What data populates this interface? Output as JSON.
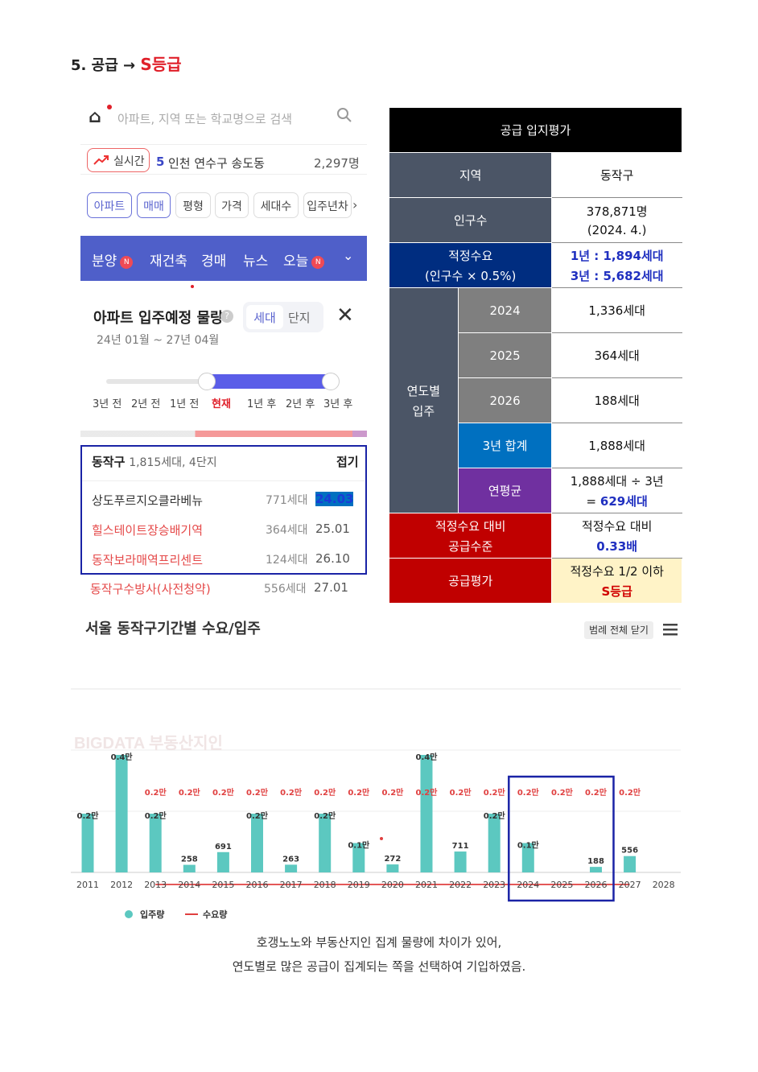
{
  "heading": {
    "prefix": "5. 공급 → ",
    "grade": "S등급"
  },
  "app": {
    "search_placeholder": "아파트, 지역 또는 학교명으로 검색",
    "realtime": {
      "label": "실시간",
      "rank": "5",
      "name": "인천 연수구 송도동",
      "count": "2,297명"
    },
    "filters": [
      "아파트",
      "매매",
      "평형",
      "가격",
      "세대수",
      "입주년차"
    ],
    "nav": [
      "분양",
      "재건축",
      "경매",
      "뉴스",
      "오늘"
    ],
    "nav_badge": "N",
    "supply_title": "아파트 입주예정 물량",
    "toggle": [
      "세대",
      "단지"
    ],
    "range": "24년 01월 ~ 27년 04월",
    "slider_labels": [
      "3년 전",
      "2년 전",
      "1년 전",
      "현재",
      "1년 후",
      "2년 후",
      "3년 후"
    ],
    "slider_selected": {
      "from": "현재",
      "to": "3년 후"
    },
    "list_head": {
      "district": "동작구",
      "summary": "1,815세대, 4단지",
      "fold": "접기"
    },
    "rows": [
      {
        "name": "상도푸르지오클라베뉴",
        "households": "771세대",
        "date": "24.03"
      },
      {
        "name": "힐스테이트장승배기역",
        "households": "364세대",
        "date": "25.01"
      },
      {
        "name": "동작보라매역프리센트",
        "households": "124세대",
        "date": "26.10"
      },
      {
        "name": "동작구수방사(사전청약)",
        "households": "556세대",
        "date": "27.01"
      }
    ]
  },
  "table": {
    "title": "공급 입지평가",
    "region_label": "지역",
    "region_value": "동작구",
    "pop_label": "인구수",
    "pop_value1": "378,871명",
    "pop_value2": "(2024. 4.)",
    "demand_label1": "적정수요",
    "demand_label2": "(인구수 × 0.5%)",
    "demand_value1": "1년 : 1,894세대",
    "demand_value2": "3년 : 5,682세대",
    "yearly_label1": "연도별",
    "yearly_label2": "입주",
    "y2024": "2024",
    "v2024": "1,336세대",
    "y2025": "2025",
    "v2025": "364세대",
    "y2026": "2026",
    "v2026": "188세대",
    "sum_label": "3년 합계",
    "sum_value": "1,888세대",
    "avg_label": "연평균",
    "avg_value1": "1,888세대 ÷ 3년",
    "avg_value2a": "= ",
    "avg_value2b": "629세대",
    "level_label1": "적정수요 대비",
    "level_label2": "공급수준",
    "level_value1": "적정수요 대비",
    "level_value2": "0.33배",
    "eval_label": "공급평가",
    "eval_value1": "적정수요 1/2 이하",
    "eval_value2": "S등급"
  },
  "chart_header": {
    "title": "서울 동작구기간별 수요/입주",
    "legend_button": "범례 전체 닫기",
    "watermark": "BIGDATA 부동산지인"
  },
  "chart_data": {
    "type": "bar",
    "categories": [
      "2011",
      "2012",
      "2013",
      "2014",
      "2015",
      "2016",
      "2017",
      "2018",
      "2019",
      "2020",
      "2021",
      "2022",
      "2023",
      "2024",
      "2025",
      "2026",
      "2027",
      "2028"
    ],
    "series": [
      {
        "name": "입주량",
        "values": [
          2000,
          4000,
          2000,
          258,
          691,
          2000,
          263,
          2000,
          1000,
          272,
          4000,
          711,
          2000,
          1000,
          0,
          188,
          556,
          0
        ]
      },
      {
        "name": "수요량",
        "values": [
          null,
          null,
          2000,
          2000,
          2000,
          2000,
          2000,
          2000,
          2000,
          2000,
          2000,
          2000,
          2000,
          2000,
          2000,
          2000,
          2000,
          null
        ]
      }
    ],
    "bar_labels": [
      "0.2만",
      "0.4만",
      "0.2만",
      "258",
      "691",
      "0.2만",
      "263",
      "0.2만",
      "0.1만",
      "272",
      "0.4만",
      "711",
      "0.2만",
      "0.1만",
      "",
      "188",
      "556",
      ""
    ],
    "demand_labels": [
      "",
      "",
      "0.2만",
      "0.2만",
      "0.2만",
      "0.2만",
      "0.2만",
      "0.2만",
      "0.2만",
      "0.2만",
      "0.2만",
      "0.2만",
      "0.2만",
      "0.2만",
      "0.2만",
      "0.2만",
      "0.2만",
      ""
    ],
    "legend": [
      "입주량",
      "수요량"
    ],
    "colors": {
      "bar": "#5cc8c0",
      "line": "#e04040",
      "highlight": "#1a23a6"
    },
    "highlight_years": [
      "2024",
      "2025",
      "2026"
    ]
  },
  "notes": [
    "호갱노노와 부동산지인 집계 물량에 차이가 있어,",
    "연도별로 많은 공급이 집계되는 쪽을 선택하여 기입하였음."
  ]
}
